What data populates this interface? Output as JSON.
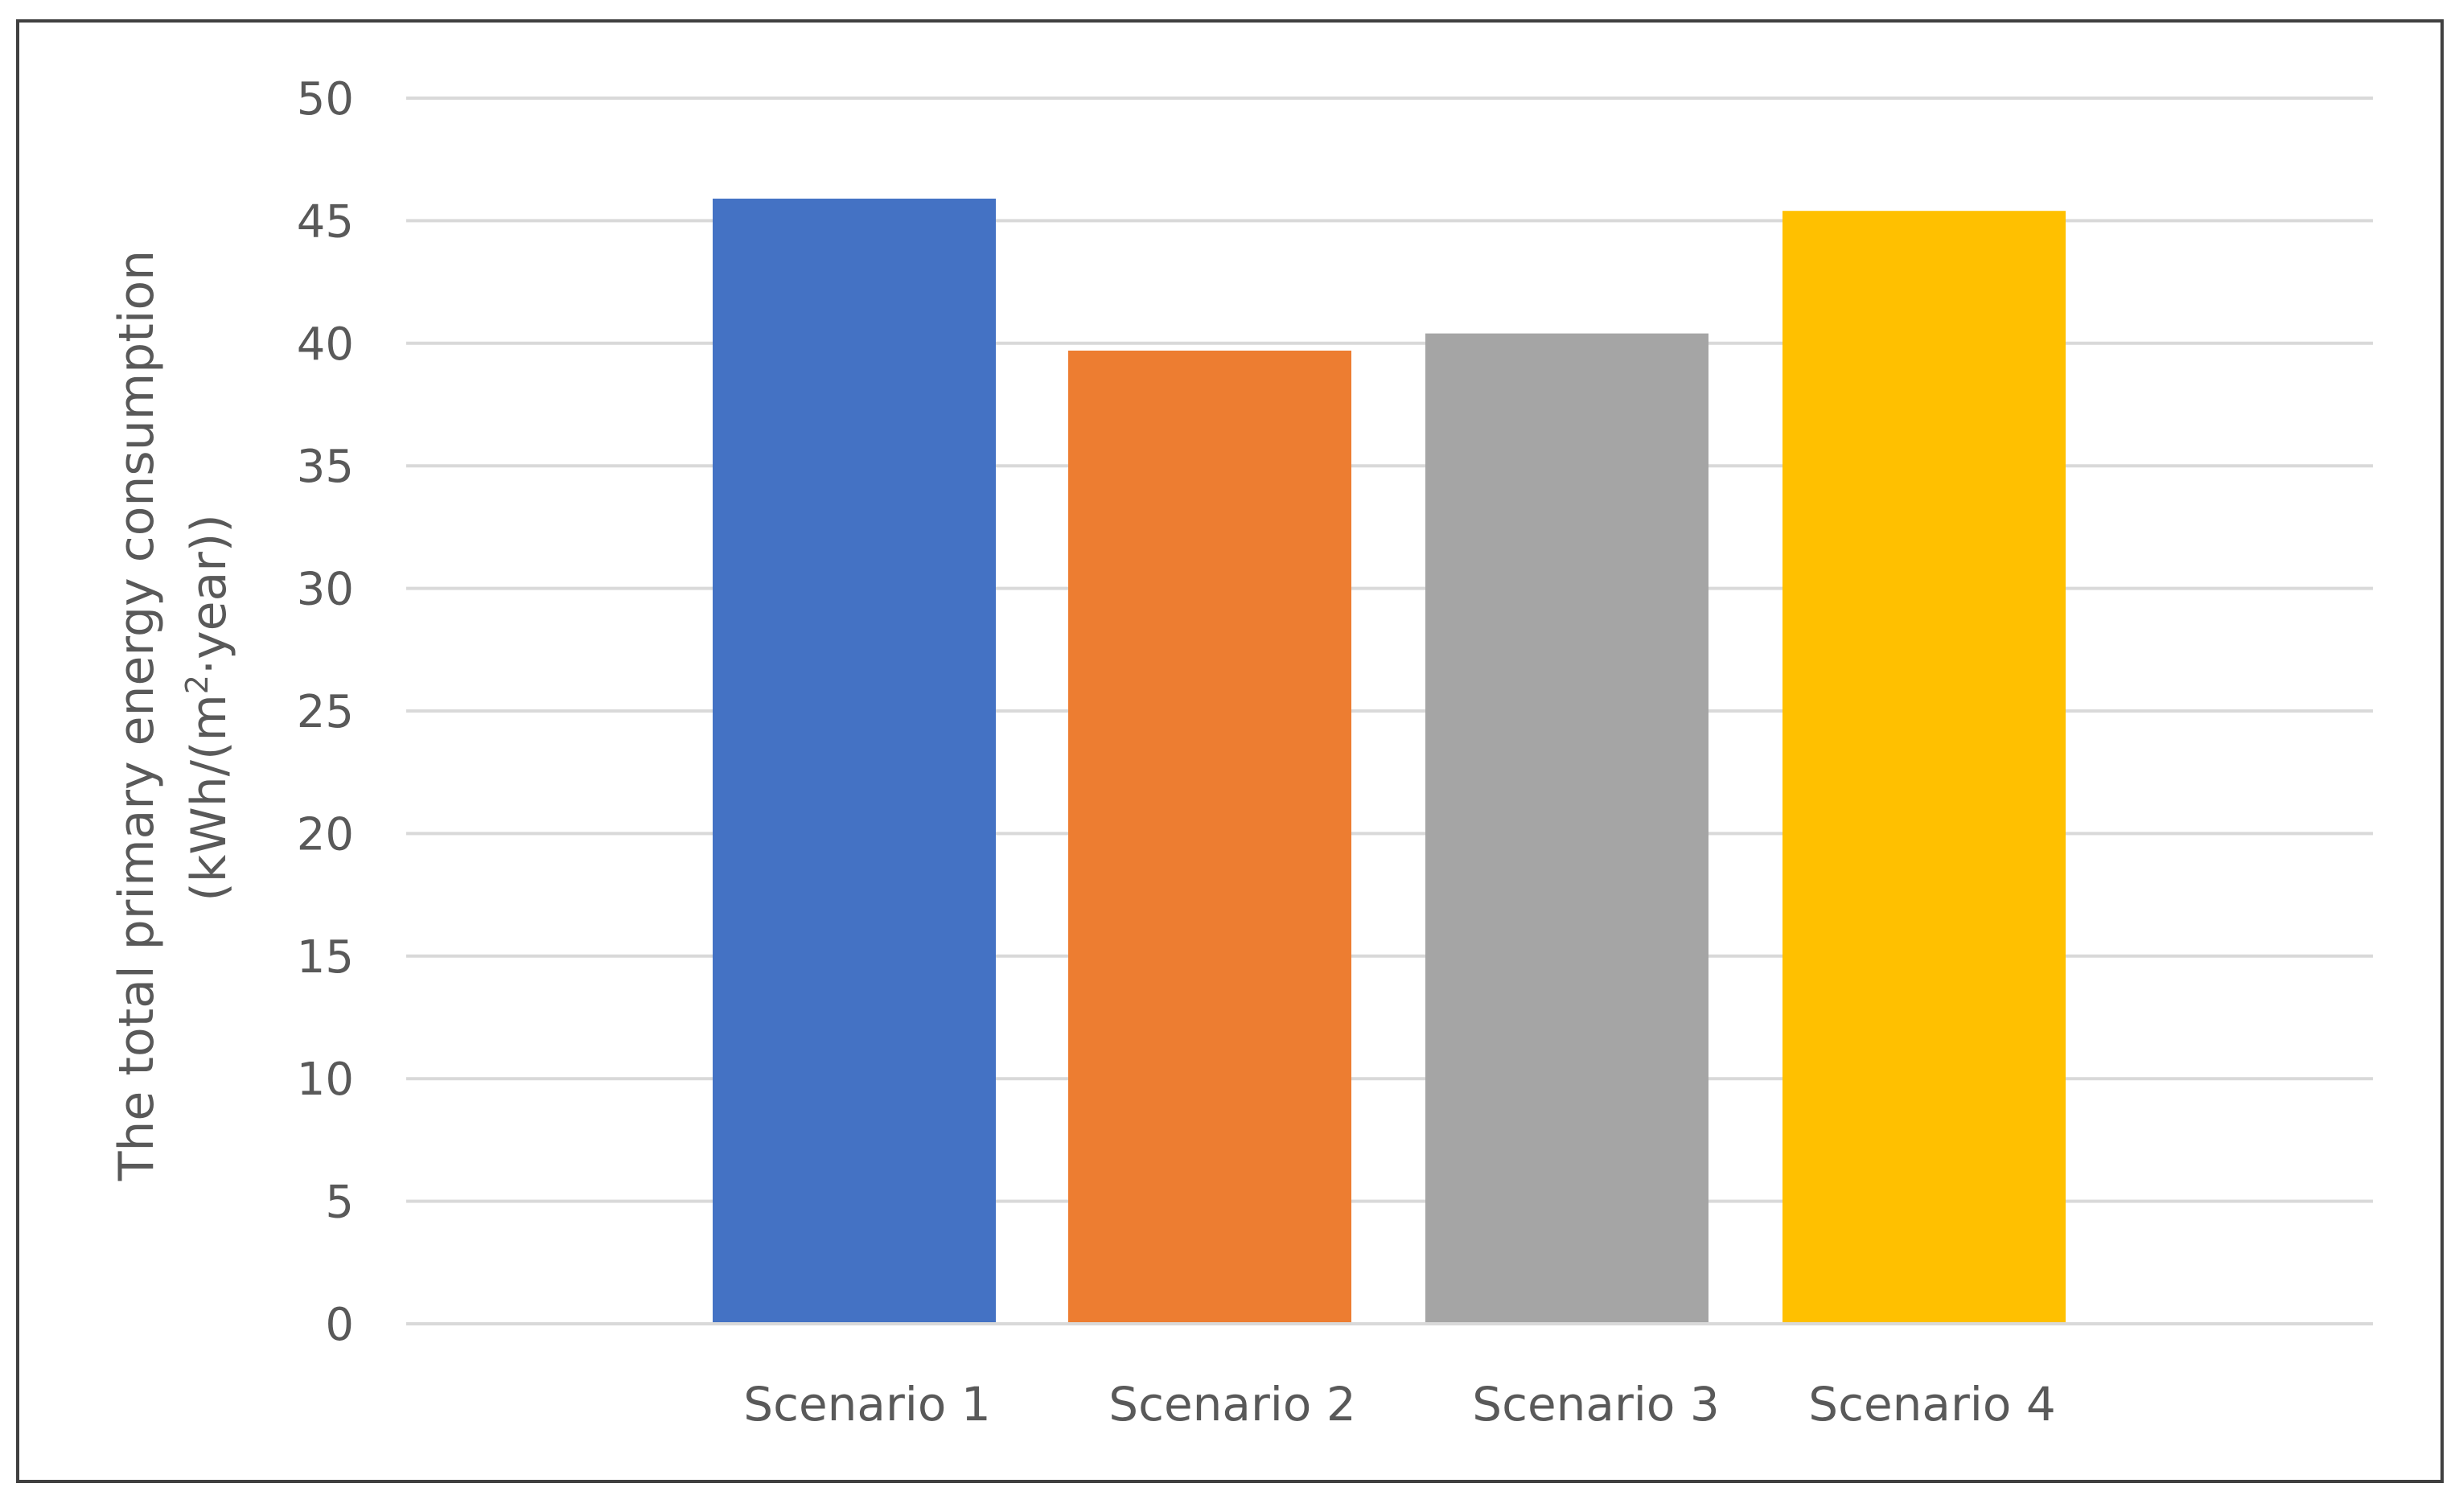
{
  "chart_data": {
    "type": "bar",
    "categories": [
      "Scenario 1",
      "Scenario 2",
      "Scenario 3",
      "Scenario 4"
    ],
    "values": [
      45.9,
      39.7,
      40.4,
      45.4
    ],
    "colors": [
      "#4472c4",
      "#ed7d31",
      "#a5a5a5",
      "#ffc000"
    ],
    "title": "",
    "xlabel": "",
    "ylabel_line1": "The total primary energy consumption",
    "ylabel_line2_prefix": "(kWh/(m",
    "ylabel_line2_sup": "2",
    "ylabel_line2_suffix": "·year))",
    "ylim": [
      0,
      50
    ],
    "yticks": [
      "0",
      "5",
      "10",
      "15",
      "20",
      "25",
      "30",
      "35",
      "40",
      "45",
      "50"
    ],
    "grid": true,
    "legend": "none"
  }
}
